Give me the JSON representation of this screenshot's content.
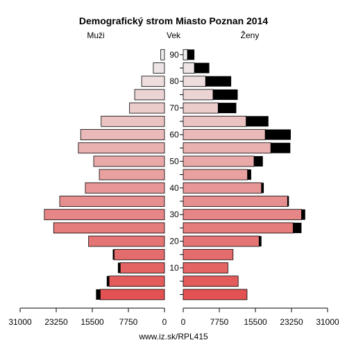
{
  "chart_data": {
    "type": "bar",
    "subtype": "population-pyramid",
    "title": "Demografický strom Miasto Poznan 2014",
    "left_label": "Muži",
    "center_label": "Vek",
    "right_label": "Ženy",
    "footer": "www.iz.sk/RPL415",
    "age_groups": [
      "0-4",
      "5-9",
      "10-14",
      "15-19",
      "20-24",
      "25-29",
      "30-34",
      "35-39",
      "40-44",
      "45-49",
      "50-54",
      "55-59",
      "60-64",
      "65-69",
      "70-74",
      "75-79",
      "80-84",
      "85-89",
      "90+"
    ],
    "age_ticks": [
      10,
      20,
      30,
      40,
      50,
      60,
      70,
      80,
      90
    ],
    "x_ticks_left": [
      "31000",
      "23250",
      "15500",
      "7750",
      "0"
    ],
    "x_ticks_right": [
      "0",
      "7750",
      "15500",
      "23250",
      "31000"
    ],
    "xlim": [
      0,
      31000
    ],
    "series": [
      {
        "name": "Muži",
        "base": [
          13800,
          11900,
          9500,
          10800,
          16300,
          23800,
          25800,
          22500,
          17000,
          14000,
          15200,
          18500,
          18000,
          13600,
          7500,
          6400,
          4900,
          2400,
          800
        ],
        "excess": [
          900,
          500,
          500,
          300,
          0,
          0,
          0,
          0,
          0,
          0,
          0,
          0,
          0,
          0,
          0,
          0,
          0,
          0,
          0
        ]
      },
      {
        "name": "Ženy",
        "base": [
          13700,
          11800,
          9600,
          10700,
          16300,
          23600,
          25400,
          22400,
          16800,
          13800,
          15200,
          18800,
          17600,
          13500,
          7500,
          6400,
          4800,
          2400,
          900
        ],
        "excess": [
          0,
          0,
          0,
          0,
          500,
          1800,
          800,
          300,
          500,
          800,
          1900,
          4200,
          5500,
          4800,
          3900,
          5300,
          5500,
          3200,
          1500
        ]
      }
    ]
  }
}
